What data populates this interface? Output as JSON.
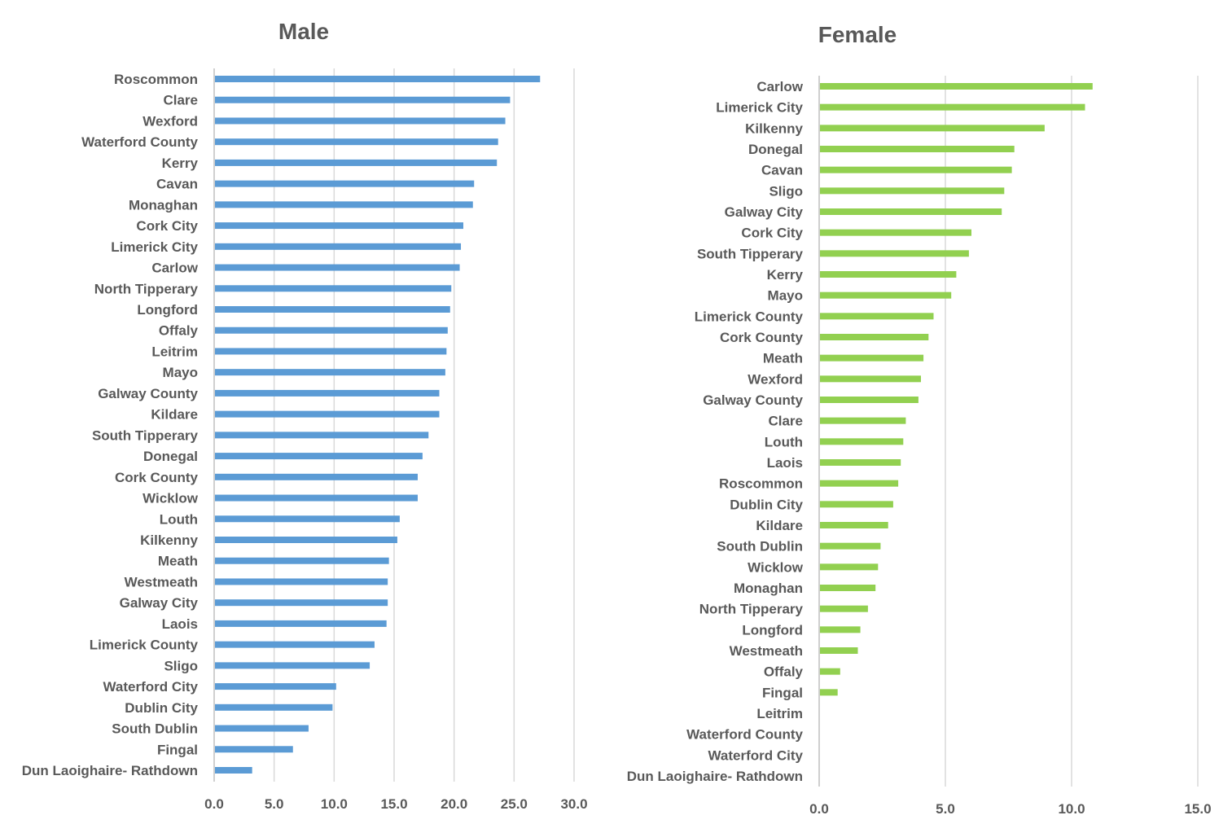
{
  "colors": {
    "male_bar": "#5b9bd5",
    "female_bar": "#92d050",
    "text": "#595959",
    "grid": "#d9d9d9"
  },
  "chart_data": [
    {
      "type": "bar",
      "orientation": "horizontal",
      "title": "Male",
      "xlim": [
        0,
        30
      ],
      "xticks": [
        "0.0",
        "5.0",
        "10.0",
        "15.0",
        "20.0",
        "25.0",
        "30.0"
      ],
      "grid": true,
      "categories": [
        "Roscommon",
        "Clare",
        "Wexford",
        "Waterford County",
        "Kerry",
        "Cavan",
        "Monaghan",
        "Cork City",
        "Limerick City",
        "Carlow",
        "North Tipperary",
        "Longford",
        "Offaly",
        "Leitrim",
        "Mayo",
        "Galway County",
        "Kildare",
        "South Tipperary",
        "Donegal",
        "Cork County",
        "Wicklow",
        "Louth",
        "Kilkenny",
        "Meath",
        "Westmeath",
        "Galway City",
        "Laois",
        "Limerick County",
        "Sligo",
        "Waterford City",
        "Dublin City",
        "South Dublin",
        "Fingal",
        "Dun Laoighaire- Rathdown"
      ],
      "values": [
        27.1,
        24.6,
        24.2,
        23.6,
        23.5,
        21.6,
        21.5,
        20.7,
        20.5,
        20.4,
        19.7,
        19.6,
        19.4,
        19.3,
        19.2,
        18.7,
        18.7,
        17.8,
        17.3,
        16.9,
        16.9,
        15.4,
        15.2,
        14.5,
        14.4,
        14.4,
        14.3,
        13.3,
        12.9,
        10.1,
        9.8,
        7.8,
        6.5,
        3.1
      ]
    },
    {
      "type": "bar",
      "orientation": "horizontal",
      "title": "Female",
      "xlim": [
        0,
        15
      ],
      "xticks": [
        "0.0",
        "5.0",
        "10.0",
        "15.0"
      ],
      "grid": true,
      "categories": [
        "Carlow",
        "Limerick City",
        "Kilkenny",
        "Donegal",
        "Cavan",
        "Sligo",
        "Galway City",
        "Cork City",
        "South Tipperary",
        "Kerry",
        "Mayo",
        "Limerick County",
        "Cork County",
        "Meath",
        "Wexford",
        "Galway County",
        "Clare",
        "Louth",
        "Laois",
        "Roscommon",
        "Dublin City",
        "Kildare",
        "South Dublin",
        "Wicklow",
        "Monaghan",
        "North Tipperary",
        "Longford",
        "Westmeath",
        "Offaly",
        "Fingal",
        "Leitrim",
        "Waterford County",
        "Waterford City",
        "Dun Laoighaire- Rathdown"
      ],
      "values": [
        10.8,
        10.5,
        8.9,
        7.7,
        7.6,
        7.3,
        7.2,
        6.0,
        5.9,
        5.4,
        5.2,
        4.5,
        4.3,
        4.1,
        4.0,
        3.9,
        3.4,
        3.3,
        3.2,
        3.1,
        2.9,
        2.7,
        2.4,
        2.3,
        2.2,
        1.9,
        1.6,
        1.5,
        0.8,
        0.7,
        0,
        0,
        0,
        0
      ]
    }
  ]
}
